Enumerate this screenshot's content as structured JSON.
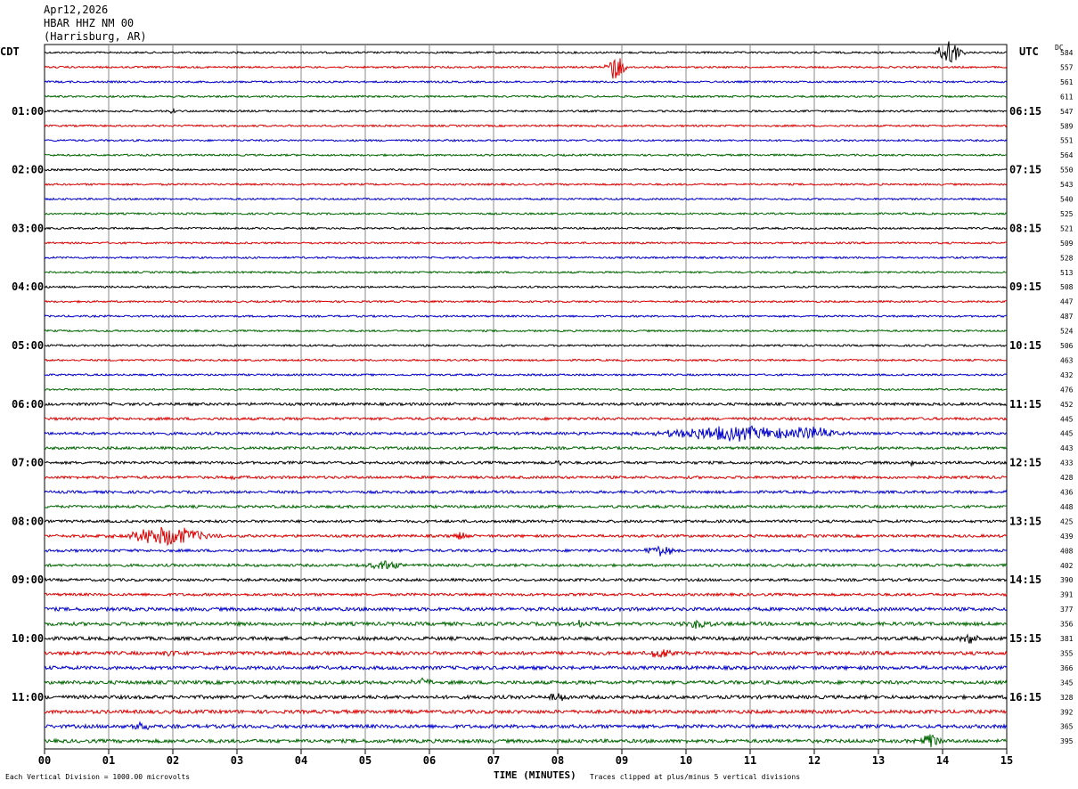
{
  "header": {
    "date": "Apr12,2026",
    "station": "HBAR HHZ NM 00",
    "location": "(Harrisburg, AR)"
  },
  "left_axis_title": "CDT",
  "right_axis_title": "UTC",
  "dc_title": "DC",
  "x_axis_title": "TIME (MINUTES)",
  "footer": {
    "scale_note": "Each Vertical Division = 1000.00 microvolts",
    "clip_note": "Traces clipped at plus/minus 5 vertical divisions"
  },
  "chart_data": {
    "type": "line",
    "description_type": "helicorder",
    "x_range_minutes": [
      0,
      15
    ],
    "x_tick_labels": [
      "00",
      "01",
      "02",
      "03",
      "04",
      "05",
      "06",
      "07",
      "08",
      "09",
      "10",
      "11",
      "12",
      "13",
      "14",
      "15"
    ],
    "trace_count": 48,
    "trace_colors": [
      "#000000",
      "#dd0000",
      "#0000cc",
      "#006600"
    ],
    "left_time_labels": [
      "01:00",
      "02:00",
      "03:00",
      "04:00",
      "05:00",
      "06:00",
      "07:00",
      "08:00",
      "09:00",
      "10:00",
      "11:00"
    ],
    "right_time_labels": [
      "06:15",
      "07:15",
      "08:15",
      "09:15",
      "10:15",
      "11:15",
      "12:15",
      "13:15",
      "14:15",
      "15:15",
      "16:15"
    ],
    "dc_offsets": [
      584,
      557,
      561,
      611,
      547,
      589,
      551,
      564,
      550,
      543,
      540,
      525,
      521,
      509,
      528,
      513,
      508,
      447,
      487,
      524,
      506,
      463,
      432,
      476,
      452,
      445,
      445,
      443,
      433,
      428,
      436,
      448,
      425,
      439,
      408,
      402,
      390,
      391,
      377,
      356,
      381,
      355,
      366,
      345,
      328,
      392,
      365,
      395
    ],
    "events": [
      {
        "trace": 0,
        "minute": 14.1,
        "amplitude": 3.0,
        "duration": 0.35
      },
      {
        "trace": 1,
        "minute": 8.9,
        "amplitude": 3.0,
        "duration": 0.3
      },
      {
        "trace": 4,
        "minute": 2.0,
        "amplitude": 0.5,
        "duration": 0.1
      },
      {
        "trace": 23,
        "minute": 6.4,
        "amplitude": 0.5,
        "duration": 0.1
      },
      {
        "trace": 26,
        "minute": 10.8,
        "amplitude": 1.6,
        "duration": 2.5
      },
      {
        "trace": 26,
        "minute": 12.0,
        "amplitude": 1.4,
        "duration": 0.6
      },
      {
        "trace": 28,
        "minute": 8.0,
        "amplitude": 0.6,
        "duration": 0.15
      },
      {
        "trace": 28,
        "minute": 13.5,
        "amplitude": 0.8,
        "duration": 0.1
      },
      {
        "trace": 29,
        "minute": 2.9,
        "amplitude": 0.5,
        "duration": 0.2
      },
      {
        "trace": 33,
        "minute": 1.9,
        "amplitude": 2.2,
        "duration": 1.2
      },
      {
        "trace": 33,
        "minute": 6.5,
        "amplitude": 0.9,
        "duration": 0.2
      },
      {
        "trace": 34,
        "minute": 9.6,
        "amplitude": 1.2,
        "duration": 0.5
      },
      {
        "trace": 35,
        "minute": 5.3,
        "amplitude": 1.0,
        "duration": 0.5
      },
      {
        "trace": 39,
        "minute": 8.4,
        "amplitude": 0.9,
        "duration": 0.3
      },
      {
        "trace": 39,
        "minute": 10.2,
        "amplitude": 1.0,
        "duration": 0.4
      },
      {
        "trace": 40,
        "minute": 14.4,
        "amplitude": 1.3,
        "duration": 0.3
      },
      {
        "trace": 41,
        "minute": 1.9,
        "amplitude": 0.9,
        "duration": 0.3
      },
      {
        "trace": 41,
        "minute": 9.6,
        "amplitude": 1.3,
        "duration": 0.3
      },
      {
        "trace": 43,
        "minute": 5.9,
        "amplitude": 0.9,
        "duration": 0.4
      },
      {
        "trace": 44,
        "minute": 8.0,
        "amplitude": 0.9,
        "duration": 0.4
      },
      {
        "trace": 46,
        "minute": 1.5,
        "amplitude": 0.7,
        "duration": 0.5
      },
      {
        "trace": 47,
        "minute": 13.8,
        "amplitude": 2.0,
        "duration": 0.3
      }
    ]
  }
}
